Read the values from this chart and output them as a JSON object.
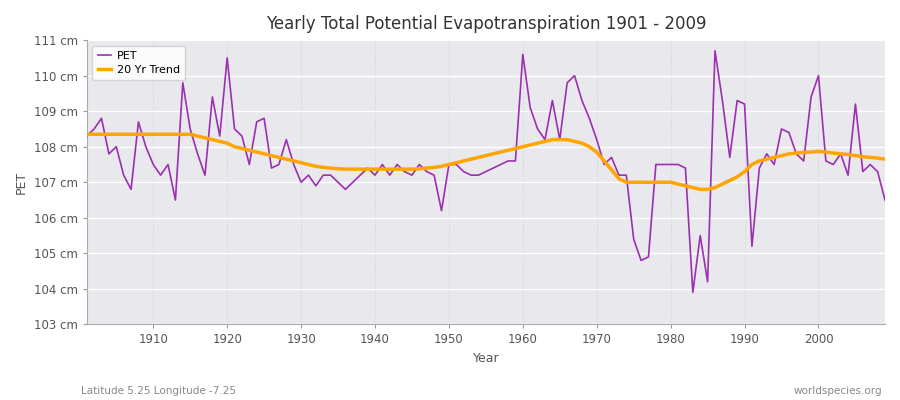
{
  "title": "Yearly Total Potential Evapotranspiration 1901 - 2009",
  "xlabel": "Year",
  "ylabel": "PET",
  "subtitle_left": "Latitude 5.25 Longitude -7.25",
  "subtitle_right": "worldspecies.org",
  "ylim": [
    103,
    111
  ],
  "ytick_labels": [
    "103 cm",
    "104 cm",
    "105 cm",
    "106 cm",
    "107 cm",
    "108 cm",
    "109 cm",
    "110 cm",
    "111 cm"
  ],
  "ytick_values": [
    103,
    104,
    105,
    106,
    107,
    108,
    109,
    110,
    111
  ],
  "pet_color": "#9b30b0",
  "trend_color": "#ffa500",
  "fig_bg": "#ffffff",
  "plot_bg": "#e8e8ed",
  "years": [
    1901,
    1902,
    1903,
    1904,
    1905,
    1906,
    1907,
    1908,
    1909,
    1910,
    1911,
    1912,
    1913,
    1914,
    1915,
    1916,
    1917,
    1918,
    1919,
    1920,
    1921,
    1922,
    1923,
    1924,
    1925,
    1926,
    1927,
    1928,
    1929,
    1930,
    1931,
    1932,
    1933,
    1934,
    1935,
    1936,
    1937,
    1938,
    1939,
    1940,
    1941,
    1942,
    1943,
    1944,
    1945,
    1946,
    1947,
    1948,
    1949,
    1950,
    1951,
    1952,
    1953,
    1954,
    1955,
    1956,
    1957,
    1958,
    1959,
    1960,
    1961,
    1962,
    1963,
    1964,
    1965,
    1966,
    1967,
    1968,
    1969,
    1970,
    1971,
    1972,
    1973,
    1974,
    1975,
    1976,
    1977,
    1978,
    1979,
    1980,
    1981,
    1982,
    1983,
    1984,
    1985,
    1986,
    1987,
    1988,
    1989,
    1990,
    1991,
    1992,
    1993,
    1994,
    1995,
    1996,
    1997,
    1998,
    1999,
    2000,
    2001,
    2002,
    2003,
    2004,
    2005,
    2006,
    2007,
    2008,
    2009
  ],
  "pet_values": [
    108.3,
    108.5,
    108.8,
    107.8,
    108.0,
    107.2,
    106.8,
    108.7,
    108.0,
    107.5,
    107.2,
    107.5,
    106.5,
    109.8,
    108.5,
    107.8,
    107.2,
    109.4,
    108.3,
    110.5,
    108.5,
    108.3,
    107.5,
    108.7,
    108.8,
    107.4,
    107.5,
    108.2,
    107.5,
    107.0,
    107.2,
    106.9,
    107.2,
    107.2,
    107.0,
    106.8,
    107.0,
    107.2,
    107.4,
    107.2,
    107.5,
    107.2,
    107.5,
    107.3,
    107.2,
    107.5,
    107.3,
    107.2,
    106.2,
    107.5,
    107.5,
    107.3,
    107.2,
    107.2,
    107.3,
    107.4,
    107.5,
    107.6,
    107.6,
    110.6,
    109.1,
    108.5,
    108.2,
    109.3,
    108.2,
    109.8,
    110.0,
    109.3,
    108.8,
    108.2,
    107.5,
    107.7,
    107.2,
    107.2,
    105.4,
    104.8,
    104.9,
    107.5,
    107.5,
    107.5,
    107.5,
    107.4,
    103.9,
    105.5,
    104.2,
    110.7,
    109.3,
    107.7,
    109.3,
    109.2,
    105.2,
    107.4,
    107.8,
    107.5,
    108.5,
    108.4,
    107.8,
    107.6,
    109.4,
    110.0,
    107.6,
    107.5,
    107.8,
    107.2,
    109.2,
    107.3,
    107.5,
    107.3,
    106.5
  ],
  "trend_values": [
    108.35,
    108.35,
    108.35,
    108.35,
    108.35,
    108.35,
    108.35,
    108.35,
    108.35,
    108.35,
    108.35,
    108.35,
    108.35,
    108.35,
    108.35,
    108.3,
    108.25,
    108.2,
    108.15,
    108.1,
    108.0,
    107.95,
    107.9,
    107.85,
    107.8,
    107.75,
    107.7,
    107.65,
    107.6,
    107.55,
    107.5,
    107.45,
    107.42,
    107.4,
    107.38,
    107.37,
    107.37,
    107.37,
    107.37,
    107.37,
    107.37,
    107.37,
    107.37,
    107.37,
    107.37,
    107.38,
    107.4,
    107.42,
    107.45,
    107.5,
    107.55,
    107.6,
    107.65,
    107.7,
    107.75,
    107.8,
    107.85,
    107.9,
    107.95,
    108.0,
    108.05,
    108.1,
    108.15,
    108.2,
    108.2,
    108.2,
    108.15,
    108.1,
    108.0,
    107.85,
    107.6,
    107.35,
    107.1,
    107.0,
    107.0,
    107.0,
    107.0,
    107.0,
    107.0,
    107.0,
    106.95,
    106.9,
    106.85,
    106.8,
    106.8,
    106.85,
    106.95,
    107.05,
    107.15,
    107.3,
    107.5,
    107.6,
    107.65,
    107.7,
    107.75,
    107.8,
    107.82,
    107.84,
    107.85,
    107.87,
    107.85,
    107.82,
    107.8,
    107.78,
    107.75,
    107.72,
    107.7,
    107.68,
    107.65
  ]
}
